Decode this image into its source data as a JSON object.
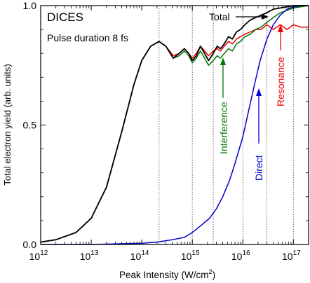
{
  "chart_data": {
    "type": "line",
    "title": "DICES",
    "subtitle": "Pulse duration 8 fs",
    "xlabel": "Peak Intensity (W/cm",
    "xlabel_sup": "2",
    "xlabel_end": ")",
    "ylabel": "Total electron yield (arb. units)",
    "x_scale": "log",
    "xlim": [
      1000000000000.0,
      2e+17
    ],
    "ylim": [
      0,
      1
    ],
    "x_ticks": [
      {
        "value": 1000000000000.0,
        "base": "10",
        "exp": "12"
      },
      {
        "value": 10000000000000.0,
        "base": "10",
        "exp": "13"
      },
      {
        "value": 100000000000000.0,
        "base": "10",
        "exp": "14"
      },
      {
        "value": 1000000000000000.0,
        "base": "10",
        "exp": "15"
      },
      {
        "value": 1e+16,
        "base": "10",
        "exp": "16"
      },
      {
        "value": 1e+17,
        "base": "10",
        "exp": "17"
      }
    ],
    "y_ticks": [
      {
        "value": 0,
        "label": "0.0"
      },
      {
        "value": 0.5,
        "label": "0.5"
      },
      {
        "value": 1,
        "label": "1.0"
      }
    ],
    "vertical_dotted_lines": [
      220000000000000.0,
      1000000000000000.0,
      2600000000000000.0,
      1e+16,
      3e+16,
      1e+17
    ],
    "colors": {
      "total": "#000000",
      "direct": "#0000cc",
      "interference": "#007700",
      "resonance": "#ee0000"
    },
    "series": [
      {
        "name": "Total",
        "x": [
          1000000000000.0,
          2000000000000.0,
          5000000000000.0,
          10000000000000.0,
          20000000000000.0,
          40000000000000.0,
          70000000000000.0,
          100000000000000.0,
          150000000000000.0,
          220000000000000.0,
          300000000000000.0,
          420000000000000.0,
          550000000000000.0,
          700000000000000.0,
          850000000000000.0,
          1000000000000000.0,
          1200000000000000.0,
          1450000000000000.0,
          1750000000000000.0,
          2100000000000000.0,
          2600000000000000.0,
          3100000000000000.0,
          3600000000000000.0,
          4300000000000000.0,
          5200000000000000.0,
          6200000000000000.0,
          7500000000000000.0,
          9000000000000000.0,
          1.1e+16,
          1.4e+16,
          1.8e+16,
          2.3e+16,
          3e+16,
          4e+16,
          5.5e+16,
          7.5e+16,
          1e+17,
          1.4e+17,
          2e+17
        ],
        "y": [
          0.01,
          0.02,
          0.05,
          0.11,
          0.24,
          0.47,
          0.67,
          0.77,
          0.83,
          0.85,
          0.83,
          0.78,
          0.8,
          0.82,
          0.8,
          0.77,
          0.79,
          0.83,
          0.8,
          0.77,
          0.8,
          0.83,
          0.82,
          0.84,
          0.87,
          0.86,
          0.89,
          0.9,
          0.92,
          0.94,
          0.95,
          0.96,
          0.97,
          0.985,
          0.99,
          0.995,
          1.0,
          1.0,
          1.0
        ]
      },
      {
        "name": "Interference",
        "x": [
          1000000000000.0,
          2000000000000.0,
          5000000000000.0,
          10000000000000.0,
          20000000000000.0,
          40000000000000.0,
          70000000000000.0,
          100000000000000.0,
          150000000000000.0,
          220000000000000.0,
          300000000000000.0,
          420000000000000.0,
          550000000000000.0,
          700000000000000.0,
          850000000000000.0,
          1000000000000000.0,
          1200000000000000.0,
          1450000000000000.0,
          1750000000000000.0,
          2100000000000000.0,
          2600000000000000.0,
          3100000000000000.0,
          3600000000000000.0,
          4300000000000000.0,
          5200000000000000.0,
          6200000000000000.0,
          7500000000000000.0,
          9000000000000000.0,
          1.1e+16,
          1.4e+16,
          1.8e+16,
          2.3e+16,
          3e+16,
          4e+16,
          5.5e+16,
          7.5e+16,
          1e+17,
          1.4e+17,
          2e+17
        ],
        "y": [
          0.01,
          0.02,
          0.05,
          0.11,
          0.24,
          0.47,
          0.67,
          0.77,
          0.83,
          0.85,
          0.83,
          0.78,
          0.79,
          0.81,
          0.79,
          0.76,
          0.78,
          0.81,
          0.78,
          0.75,
          0.77,
          0.79,
          0.78,
          0.8,
          0.82,
          0.81,
          0.84,
          0.85,
          0.87,
          0.88,
          0.9,
          0.91,
          0.93,
          0.95,
          0.97,
          0.98,
          0.99,
          0.995,
          1.0
        ]
      },
      {
        "name": "Resonance",
        "x": [
          1000000000000.0,
          2000000000000.0,
          5000000000000.0,
          10000000000000.0,
          20000000000000.0,
          40000000000000.0,
          70000000000000.0,
          100000000000000.0,
          150000000000000.0,
          220000000000000.0,
          300000000000000.0,
          420000000000000.0,
          550000000000000.0,
          700000000000000.0,
          850000000000000.0,
          1000000000000000.0,
          1200000000000000.0,
          1450000000000000.0,
          1750000000000000.0,
          2100000000000000.0,
          2600000000000000.0,
          3100000000000000.0,
          3600000000000000.0,
          4300000000000000.0,
          5200000000000000.0,
          6200000000000000.0,
          7500000000000000.0,
          9000000000000000.0,
          1.1e+16,
          1.4e+16,
          1.8e+16,
          2.3e+16,
          3e+16,
          4e+16,
          5.5e+16,
          7.5e+16,
          1e+17,
          1.4e+17,
          2e+17
        ],
        "y": [
          0.01,
          0.02,
          0.05,
          0.11,
          0.24,
          0.47,
          0.67,
          0.77,
          0.83,
          0.85,
          0.83,
          0.79,
          0.8,
          0.82,
          0.8,
          0.78,
          0.8,
          0.83,
          0.81,
          0.79,
          0.81,
          0.82,
          0.81,
          0.83,
          0.85,
          0.84,
          0.86,
          0.87,
          0.88,
          0.89,
          0.9,
          0.9,
          0.92,
          0.9,
          0.92,
          0.9,
          0.92,
          0.91,
          0.91
        ]
      },
      {
        "name": "Direct",
        "x": [
          1000000000000.0,
          10000000000000.0,
          100000000000000.0,
          200000000000000.0,
          400000000000000.0,
          700000000000000.0,
          1000000000000000.0,
          1500000000000000.0,
          2200000000000000.0,
          3000000000000000.0,
          4000000000000000.0,
          5500000000000000.0,
          7000000000000000.0,
          1e+16,
          1.3e+16,
          1.7e+16,
          2.2e+16,
          3e+16,
          4e+16,
          5.5e+16,
          7.5e+16,
          1e+17,
          1.5e+17,
          2e+17
        ],
        "y": [
          0.0,
          0.0,
          0.005,
          0.01,
          0.02,
          0.03,
          0.05,
          0.08,
          0.11,
          0.15,
          0.2,
          0.27,
          0.34,
          0.45,
          0.56,
          0.67,
          0.77,
          0.86,
          0.92,
          0.96,
          0.985,
          0.995,
          1.0,
          1.0
        ]
      }
    ],
    "annotations": [
      {
        "text": "Total",
        "target": [
          2.9e+16,
          0.945
        ],
        "color": "#000000"
      },
      {
        "text": "Interference",
        "target": [
          3400000000000000.0,
          0.78
        ],
        "color": "#007700"
      },
      {
        "text": "Direct",
        "target": [
          1.7e+16,
          0.64
        ],
        "color": "#0000cc"
      },
      {
        "text": "Resonance",
        "target": [
          5.2e+16,
          0.9
        ],
        "color": "#ee0000"
      }
    ]
  }
}
